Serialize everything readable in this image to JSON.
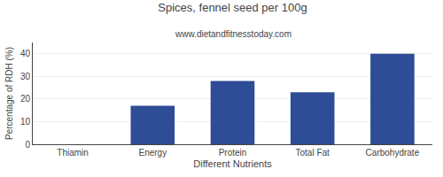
{
  "chart_data": {
    "type": "bar",
    "title": "Spices, fennel seed per 100g",
    "subtitle": "www.dietandfitnesstoday.com",
    "xlabel": "Different Nutrients",
    "ylabel": "Percentage of RDH (%)",
    "categories": [
      "Thiamin",
      "Energy",
      "Protein",
      "Total Fat",
      "Carbohydrate"
    ],
    "values": [
      0,
      17,
      28,
      23,
      40
    ],
    "color": "#2e4d96",
    "ylim": [
      0,
      45
    ],
    "yticks": [
      0,
      10,
      20,
      30,
      40
    ],
    "grid": true
  }
}
